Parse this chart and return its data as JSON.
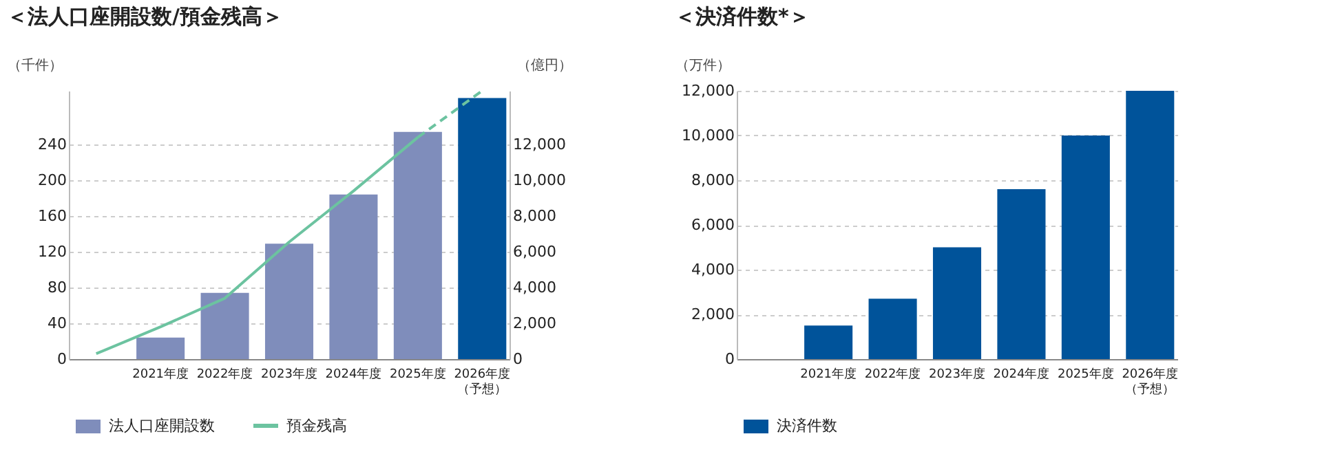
{
  "chart_data": [
    {
      "type": "bar",
      "title": "＜法人口座開設数/預金残高＞",
      "ylabel": "（千件）",
      "y2label": "（億円）",
      "categories": [
        null,
        "2021年度",
        "2022年度",
        "2023年度",
        "2024年度",
        "2025年度",
        "2026年度（予想）"
      ],
      "series": [
        {
          "name": "法人口座開設数",
          "color": "#7f8dbb",
          "colors": [
            "#7f8dbb",
            "#7f8dbb",
            "#7f8dbb",
            "#7f8dbb",
            "#7f8dbb",
            "#7f8dbb",
            "#00539a"
          ],
          "values": [
            null,
            24,
            74,
            129,
            184,
            254,
            292
          ]
        },
        {
          "name": "預金残高",
          "type": "line",
          "axis": "y2",
          "color": "#6cc3a0",
          "line_style": "solid",
          "values": [
            300,
            1800,
            3400,
            6550,
            9400,
            12400,
            null
          ]
        },
        {
          "type": "line",
          "axis": "y2",
          "color": "#6cc3a0",
          "line_style": "dashed",
          "values": [
            null,
            null,
            null,
            null,
            null,
            12400,
            15000
          ]
        }
      ],
      "ylim": [
        0,
        300
      ],
      "yticks": [
        0,
        40,
        80,
        120,
        160,
        200,
        240
      ],
      "y2lim": [
        0,
        15000
      ],
      "y2ticks": [
        0,
        {
          "value": 2000,
          "label": "2,000"
        },
        {
          "value": 4000,
          "label": "4,000"
        },
        {
          "value": 6000,
          "label": "6,000"
        },
        {
          "value": 8000,
          "label": "8,000"
        },
        {
          "value": 10000,
          "label": "10,000"
        },
        {
          "value": 12000,
          "label": "12,000"
        }
      ],
      "grid": "y",
      "legend": "bottom left"
    },
    {
      "type": "bar",
      "title": "＜決済件数*＞",
      "ylabel": "（万件）",
      "categories": [
        null,
        "2021年度",
        "2022年度",
        "2023年度",
        "2024年度",
        "2025年度",
        "2026年度（予想）"
      ],
      "series": [
        {
          "name": "決済件数",
          "color": "#00539a",
          "values": [
            null,
            1500,
            2700,
            5000,
            7600,
            10000,
            12000
          ]
        }
      ],
      "ylim": [
        0,
        12000
      ],
      "yticks": [
        0,
        {
          "value": 2000,
          "label": "2,000"
        },
        {
          "value": 4000,
          "label": "4,000"
        },
        {
          "value": 6000,
          "label": "6,000"
        },
        {
          "value": 8000,
          "label": "8,000"
        },
        {
          "value": 10000,
          "label": "10,000"
        },
        {
          "value": 12000,
          "label": "12,000"
        }
      ],
      "grid": "y",
      "legend": "bottom left"
    }
  ]
}
